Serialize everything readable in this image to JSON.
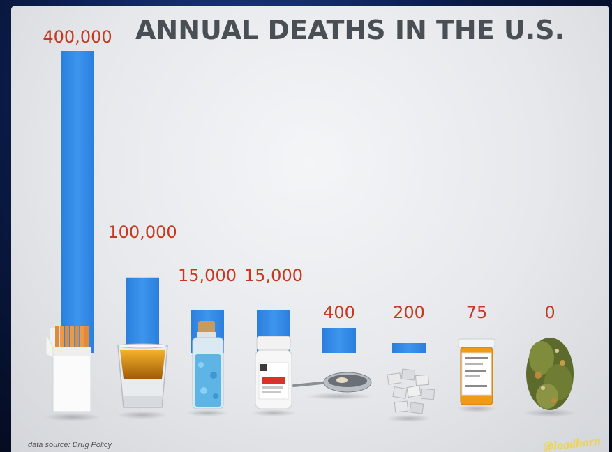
{
  "chart_data": {
    "type": "bar",
    "title": "ANNUAL DEATHS IN THE U.S.",
    "categories": [
      "Tobacco",
      "Alcohol",
      "Crystal meth",
      "Acetaminophen",
      "Heroin",
      "Ecstasy",
      "Prescription pills",
      "Marijuana"
    ],
    "values": [
      400000,
      100000,
      15000,
      15000,
      400,
      200,
      75,
      0
    ],
    "value_labels": [
      "400,000",
      "100,000",
      "15,000",
      "15,000",
      "400",
      "200",
      "75",
      "0"
    ],
    "xlabel": "",
    "ylabel": "",
    "grid": false,
    "colors": {
      "bar": "#2f87e3",
      "value_label": "#c8371f",
      "title": "#4a4f56"
    }
  },
  "footer": {
    "source": "data source: Drug Policy",
    "watermark": "@loadhorn"
  },
  "icons": [
    "cigarette-pack-icon",
    "shot-glass-icon",
    "meth-vial-icon",
    "pill-bottle-icon",
    "heroin-spoon-icon",
    "ecstasy-pills-icon",
    "prescription-bottle-icon",
    "marijuana-bud-icon"
  ]
}
